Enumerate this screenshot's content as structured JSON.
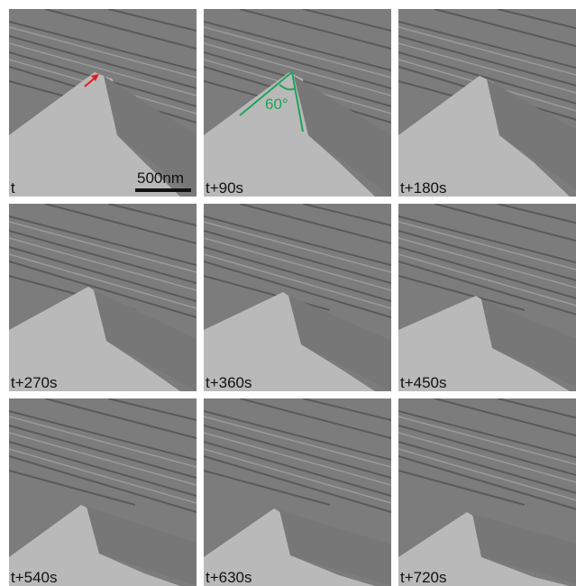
{
  "figure": {
    "panels": [
      {
        "time_label": "t"
      },
      {
        "time_label": "t+90s"
      },
      {
        "time_label": "t+180s"
      },
      {
        "time_label": "t+270s"
      },
      {
        "time_label": "t+360s"
      },
      {
        "time_label": "t+450s"
      },
      {
        "time_label": "t+540s"
      },
      {
        "time_label": "t+630s"
      },
      {
        "time_label": "t+720s"
      }
    ],
    "scale_bar": {
      "label": "500nm"
    },
    "angle_annotation": {
      "label": "60°",
      "color": "#1fa35a"
    },
    "arrow_annotation": {
      "color": "#e02020",
      "icon": "arrow-icon"
    }
  },
  "colors": {
    "dark_region": "#7c7c7c",
    "light_region": "#b9b9b9",
    "step_lines": "#5a5a5a"
  }
}
